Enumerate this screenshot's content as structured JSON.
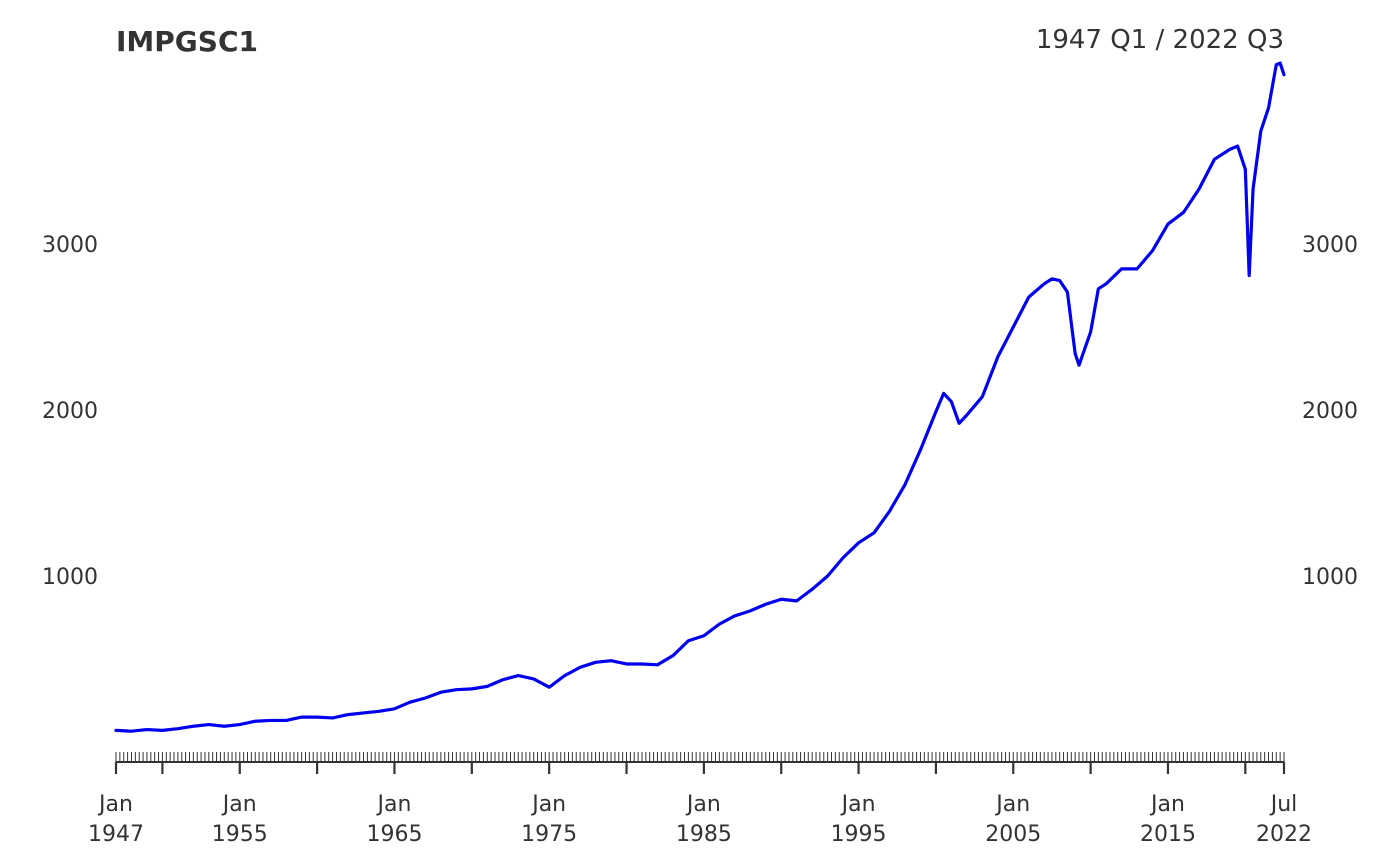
{
  "chart_data": {
    "type": "line",
    "title": "IMPGSC1",
    "subtitle": "1947 Q1 / 2022 Q3",
    "frequency": "quarterly",
    "start": "1947 Q1",
    "end": "2022 Q3",
    "color": "#0000ee",
    "grid": false,
    "y_axes": "left and right",
    "ylim": [
      0,
      3900
    ],
    "yticks": [
      1000,
      2000,
      3000
    ],
    "ytick_labels": [
      "1000",
      "2000",
      "3000"
    ],
    "x_major_ticks": [
      {
        "line1": "Jan",
        "line2": "1947",
        "date": "1947-01"
      },
      {
        "line1": "Jan",
        "line2": "1955",
        "date": "1955-01"
      },
      {
        "line1": "Jan",
        "line2": "1965",
        "date": "1965-01"
      },
      {
        "line1": "Jan",
        "line2": "1975",
        "date": "1975-01"
      },
      {
        "line1": "Jan",
        "line2": "1985",
        "date": "1985-01"
      },
      {
        "line1": "Jan",
        "line2": "1995",
        "date": "1995-01"
      },
      {
        "line1": "Jan",
        "line2": "2005",
        "date": "2005-01"
      },
      {
        "line1": "Jan",
        "line2": "2015",
        "date": "2015-01"
      },
      {
        "line1": "Jul",
        "line2": "2022",
        "date": "2022-07"
      }
    ],
    "series": [
      {
        "values": [
          {
            "x": "1947-01",
            "y": 70
          },
          {
            "x": "1948-01",
            "y": 65
          },
          {
            "x": "1949-01",
            "y": 75
          },
          {
            "x": "1950-01",
            "y": 70
          },
          {
            "x": "1951-01",
            "y": 80
          },
          {
            "x": "1952-01",
            "y": 95
          },
          {
            "x": "1953-01",
            "y": 105
          },
          {
            "x": "1954-01",
            "y": 95
          },
          {
            "x": "1955-01",
            "y": 105
          },
          {
            "x": "1956-01",
            "y": 125
          },
          {
            "x": "1957-01",
            "y": 130
          },
          {
            "x": "1958-01",
            "y": 130
          },
          {
            "x": "1959-01",
            "y": 150
          },
          {
            "x": "1960-01",
            "y": 150
          },
          {
            "x": "1961-01",
            "y": 145
          },
          {
            "x": "1962-01",
            "y": 165
          },
          {
            "x": "1963-01",
            "y": 175
          },
          {
            "x": "1964-01",
            "y": 185
          },
          {
            "x": "1965-01",
            "y": 200
          },
          {
            "x": "1966-01",
            "y": 240
          },
          {
            "x": "1967-01",
            "y": 265
          },
          {
            "x": "1968-01",
            "y": 300
          },
          {
            "x": "1969-01",
            "y": 315
          },
          {
            "x": "1970-01",
            "y": 320
          },
          {
            "x": "1971-01",
            "y": 335
          },
          {
            "x": "1972-01",
            "y": 375
          },
          {
            "x": "1973-01",
            "y": 400
          },
          {
            "x": "1974-01",
            "y": 380
          },
          {
            "x": "1975-01",
            "y": 330
          },
          {
            "x": "1976-01",
            "y": 400
          },
          {
            "x": "1977-01",
            "y": 450
          },
          {
            "x": "1978-01",
            "y": 480
          },
          {
            "x": "1979-01",
            "y": 490
          },
          {
            "x": "1980-01",
            "y": 470
          },
          {
            "x": "1981-01",
            "y": 470
          },
          {
            "x": "1982-01",
            "y": 465
          },
          {
            "x": "1983-01",
            "y": 520
          },
          {
            "x": "1984-01",
            "y": 610
          },
          {
            "x": "1985-01",
            "y": 640
          },
          {
            "x": "1986-01",
            "y": 710
          },
          {
            "x": "1987-01",
            "y": 760
          },
          {
            "x": "1988-01",
            "y": 790
          },
          {
            "x": "1989-01",
            "y": 830
          },
          {
            "x": "1990-01",
            "y": 860
          },
          {
            "x": "1991-01",
            "y": 850
          },
          {
            "x": "1992-01",
            "y": 920
          },
          {
            "x": "1993-01",
            "y": 1000
          },
          {
            "x": "1994-01",
            "y": 1110
          },
          {
            "x": "1995-01",
            "y": 1200
          },
          {
            "x": "1996-01",
            "y": 1260
          },
          {
            "x": "1997-01",
            "y": 1390
          },
          {
            "x": "1998-01",
            "y": 1550
          },
          {
            "x": "1999-01",
            "y": 1760
          },
          {
            "x": "2000-01",
            "y": 1990
          },
          {
            "x": "2000-07",
            "y": 2100
          },
          {
            "x": "2001-01",
            "y": 2050
          },
          {
            "x": "2001-07",
            "y": 1920
          },
          {
            "x": "2002-01",
            "y": 1970
          },
          {
            "x": "2003-01",
            "y": 2080
          },
          {
            "x": "2004-01",
            "y": 2320
          },
          {
            "x": "2005-01",
            "y": 2500
          },
          {
            "x": "2006-01",
            "y": 2680
          },
          {
            "x": "2007-01",
            "y": 2760
          },
          {
            "x": "2007-07",
            "y": 2790
          },
          {
            "x": "2008-01",
            "y": 2780
          },
          {
            "x": "2008-07",
            "y": 2710
          },
          {
            "x": "2009-01",
            "y": 2340
          },
          {
            "x": "2009-04",
            "y": 2270
          },
          {
            "x": "2010-01",
            "y": 2470
          },
          {
            "x": "2010-07",
            "y": 2730
          },
          {
            "x": "2011-01",
            "y": 2760
          },
          {
            "x": "2012-01",
            "y": 2850
          },
          {
            "x": "2013-01",
            "y": 2850
          },
          {
            "x": "2014-01",
            "y": 2960
          },
          {
            "x": "2015-01",
            "y": 3120
          },
          {
            "x": "2016-01",
            "y": 3190
          },
          {
            "x": "2017-01",
            "y": 3330
          },
          {
            "x": "2018-01",
            "y": 3510
          },
          {
            "x": "2019-01",
            "y": 3570
          },
          {
            "x": "2019-07",
            "y": 3590
          },
          {
            "x": "2020-01",
            "y": 3450
          },
          {
            "x": "2020-04",
            "y": 2810
          },
          {
            "x": "2020-07",
            "y": 3330
          },
          {
            "x": "2021-01",
            "y": 3680
          },
          {
            "x": "2021-07",
            "y": 3820
          },
          {
            "x": "2022-01",
            "y": 4080
          },
          {
            "x": "2022-04",
            "y": 4090
          },
          {
            "x": "2022-07",
            "y": 4020
          }
        ]
      }
    ]
  }
}
